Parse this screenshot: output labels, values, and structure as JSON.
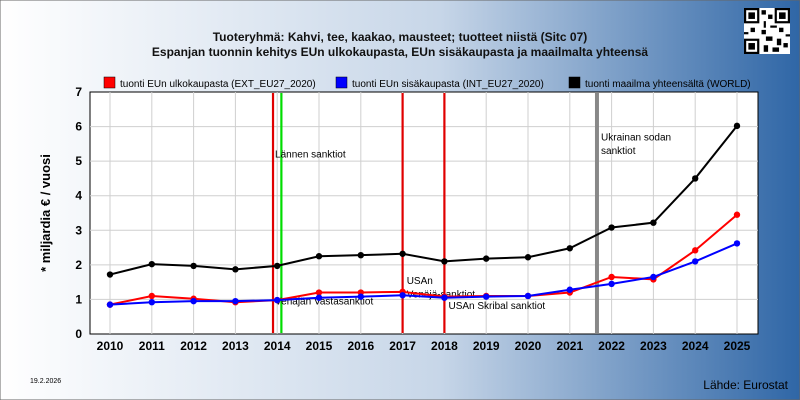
{
  "header": {
    "title_line1": "Tuoteryhmä: Kahvi, tee, kaakao, mausteet; tuotteet niistä (Sitc 07)",
    "title_line2": "Espanjan tuonnin kehitys EUn ulkokaupasta, EUn sisäkaupasta ja maailmalta yhteensä"
  },
  "footer": {
    "date": "19.2.2026",
    "source": "Lähde: Eurostat"
  },
  "chart_data": {
    "type": "line",
    "ylabel": "* miljardia € / vuosi",
    "xlabel": "",
    "ylim": [
      0,
      7
    ],
    "yticks": [
      0,
      1,
      2,
      3,
      4,
      5,
      6,
      7
    ],
    "categories": [
      "2010",
      "2011",
      "2012",
      "2013",
      "2014",
      "2015",
      "2016",
      "2017",
      "2018",
      "2019",
      "2020",
      "2021",
      "2022",
      "2023",
      "2024",
      "2025"
    ],
    "grid": true,
    "legend_placement": "top",
    "series": [
      {
        "name": "tuonti EUn ulkokaupasta (EXT_EU27_2020)",
        "color": "#ff0000",
        "values": [
          0.85,
          1.1,
          1.02,
          0.92,
          0.98,
          1.2,
          1.2,
          1.22,
          1.08,
          1.1,
          1.1,
          1.2,
          1.65,
          1.58,
          2.42,
          3.45
        ]
      },
      {
        "name": "tuonti EUn sisäkaupasta (INT_EU27_2020)",
        "color": "#0000ff",
        "values": [
          0.85,
          0.92,
          0.95,
          0.95,
          0.98,
          1.05,
          1.08,
          1.12,
          1.05,
          1.08,
          1.1,
          1.28,
          1.45,
          1.65,
          2.1,
          2.62
        ]
      },
      {
        "name": "tuonti maailma yhteensältä (WORLD)",
        "color": "#000000",
        "values": [
          1.72,
          2.02,
          1.97,
          1.87,
          1.97,
          2.25,
          2.28,
          2.32,
          2.1,
          2.18,
          2.22,
          2.48,
          3.08,
          3.22,
          4.5,
          6.02
        ]
      }
    ],
    "annotations": [
      {
        "kind": "vline",
        "x": 2013.9,
        "color": "#e00000",
        "label": ""
      },
      {
        "kind": "vline",
        "x": 2014.1,
        "color": "#00dd00",
        "label": ""
      },
      {
        "kind": "text",
        "x": 2013.9,
        "y": 5.1,
        "text": "Lännen sanktiot"
      },
      {
        "kind": "text",
        "x": 2013.9,
        "y": 0.85,
        "text": "Venäjän Vastasanktiot"
      },
      {
        "kind": "vline",
        "x": 2017.0,
        "color": "#e00000",
        "label": ""
      },
      {
        "kind": "text",
        "x": 2017.05,
        "y": 1.45,
        "text": "USAn"
      },
      {
        "kind": "text",
        "x": 2017.05,
        "y": 1.05,
        "text": "Venäjä-sanktiot"
      },
      {
        "kind": "vline",
        "x": 2018.0,
        "color": "#e00000",
        "label": ""
      },
      {
        "kind": "text",
        "x": 2018.05,
        "y": 0.72,
        "text": "USAn Skribal sanktiot"
      },
      {
        "kind": "vline",
        "x": 2021.65,
        "color": "#888888",
        "label": ""
      },
      {
        "kind": "text",
        "x": 2021.7,
        "y": 5.6,
        "text": "Ukrainan sodan"
      },
      {
        "kind": "text",
        "x": 2021.7,
        "y": 5.2,
        "text": "sanktiot"
      }
    ]
  }
}
